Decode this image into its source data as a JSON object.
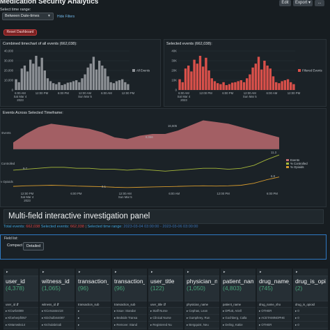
{
  "header": {
    "title": "Medication Security Analytics",
    "edit_label": "Edit",
    "export_label": "Export ▾",
    "more_label": "..."
  },
  "controls": {
    "time_range_label": "Select time range:",
    "time_range_value": "Between Date-times",
    "hide_filters": "Hide Filters",
    "reset_label": "Reset Dashboard"
  },
  "timechart_all": {
    "title": "Combined timechart of all events (662,038):",
    "legend": "All Events",
    "bar_color": "#8d9196",
    "chart_data": {
      "type": "bar",
      "y_ticks": [
        "40,000",
        "30,000",
        "20,000",
        "10,000",
        "0"
      ],
      "ylim": [
        0,
        40000
      ],
      "x_ticks": [
        "6:00 AM\nSat Mar 4\n2023",
        "12:00 PM",
        "6:00 PM",
        "12:00 AM\nSun Mar 5",
        "6:00 AM",
        "12:00 PM"
      ],
      "values": [
        11000,
        8000,
        22000,
        25000,
        19000,
        31000,
        27000,
        35000,
        24000,
        33000,
        20000,
        12000,
        9000,
        7000,
        6000,
        8000,
        5000,
        6000,
        7500,
        8000,
        9000,
        10000,
        8000,
        12000,
        16000,
        23000,
        27000,
        34000,
        21000,
        30000,
        25000,
        22000,
        14000,
        8000,
        7000,
        9000,
        10000,
        11000,
        8000,
        6000
      ]
    }
  },
  "timechart_sel": {
    "title": "Selected events (662,038):",
    "legend": "Filtered Events",
    "bar_color": "#d9504a",
    "chart_data": {
      "type": "bar",
      "y_ticks": [
        "40K",
        "30K",
        "20K",
        "10K",
        "0"
      ],
      "ylim": [
        0,
        40000
      ],
      "x_ticks": [
        "6:00 AM\nSat Mar 4\n2023",
        "12:00 PM",
        "6:00 PM",
        "12:00 AM\nSun Mar 5",
        "6:00 AM",
        "12:00 PM"
      ],
      "values": [
        11000,
        8000,
        22000,
        25000,
        19000,
        31000,
        27000,
        35000,
        24000,
        33000,
        20000,
        12000,
        9000,
        7000,
        6000,
        8000,
        5000,
        6000,
        7500,
        8000,
        9000,
        10000,
        8000,
        12000,
        16000,
        23000,
        27000,
        34000,
        21000,
        30000,
        25000,
        22000,
        14000,
        8000,
        7000,
        9000,
        10000,
        11000,
        8000,
        6000
      ]
    }
  },
  "timeframe": {
    "title": "Events Across Selected Timeframe:",
    "legend": [
      "Events",
      "% Controlled",
      "% Opioids"
    ],
    "colors": {
      "events": "#c56f74",
      "controlled": "#a6b83a",
      "opioids": "#d59a2e"
    },
    "chart_data": {
      "type": "area",
      "events_label": "Events",
      "controlled_label": "% Controlled",
      "opioids_label": "% Opioids",
      "events_annotation": "9,066",
      "events_peak": "16,605",
      "controlled_start": "9.7",
      "controlled_end": "11.3",
      "opioids_low": "3.1",
      "opioids_end": "6.8",
      "x_ticks": [
        "12:00 PM\nSat Mar 4\n2023",
        "6:00 PM",
        "12:00 AM\nSun Mar 5",
        "6:00 AM",
        "12:00 PM",
        "6:00 PM"
      ],
      "events": [
        4,
        9,
        13,
        15,
        14,
        13,
        12,
        10,
        7,
        6,
        8,
        9,
        9,
        11,
        14,
        17,
        16,
        15,
        13,
        11,
        9,
        7
      ],
      "controlled": [
        9.7,
        9.8,
        9.9,
        10.0,
        10.0,
        9.9,
        9.9,
        9.8,
        9.8,
        9.7,
        9.8,
        9.7,
        9.6,
        9.7,
        9.8,
        9.9,
        9.9,
        9.8,
        9.9,
        10.2,
        10.8,
        11.3
      ],
      "opioids": [
        3.5,
        3.7,
        3.8,
        3.9,
        3.8,
        3.6,
        3.5,
        3.4,
        3.2,
        3.1,
        3.2,
        3.3,
        3.4,
        3.5,
        3.6,
        3.7,
        3.6,
        3.7,
        3.9,
        4.6,
        5.8,
        6.8
      ]
    }
  },
  "panel": {
    "title": "Multi-field interactive investigation panel",
    "total_label": "Total events:",
    "total_value": "662,038",
    "selected_label": "Selected events:",
    "selected_value": "662,038",
    "range_label": "Selected time range:",
    "range_value": "2023-03-04 03:00:00 - 2023-03-06 03:00:00"
  },
  "field_list": {
    "label": "Field list:",
    "compact": "Compact",
    "detailed": "Detailed"
  },
  "columns": [
    {
      "name": "user_id",
      "count": "(4,378)",
      "sub": "user_id ⇵",
      "rows": [
        "KCwrb4089",
        "Kfoeherpfi057",
        "KMarnwks14",
        "OSwifterz01"
      ]
    },
    {
      "name": "witness_id",
      "count": "(1,065)",
      "sub": "witness_id ⇵",
      "rows": [
        "KCervantez18",
        "KDchulbm4087",
        "KIchulabriodi",
        "KUkucxdo483"
      ]
    },
    {
      "name": "transaction_",
      "count": "(96)",
      "sub": "transaction_sub",
      "rows": [
        "",
        "",
        "",
        ""
      ]
    },
    {
      "name": "transaction_",
      "count": "(96)",
      "sub": "transaction_sub",
      "rows": [
        "Issue: Standar",
        "Bedside Transa",
        "Remove: Stand",
        ""
      ]
    },
    {
      "name": "user_title",
      "count": "(122)",
      "sub": "user_title ⇵",
      "rows": [
        "Staff Nurse",
        "Clinical Nurse",
        "Registered Nu",
        "Staff Nurse"
      ]
    },
    {
      "name": "physician_n",
      "count": "(1,050)",
      "sub": "physician_name",
      "rows": [
        "Cephas, Lean",
        "Gumphrey, Run",
        "Bergquist, Neu",
        "Rhewanee Juda"
      ]
    },
    {
      "name": "patient_nam",
      "count": "(4,803)",
      "sub": "patient_name",
      "rows": [
        "DPlutt, Ariell",
        "Gochberg, Calla",
        "Deling, Kakie",
        "Cervantes Luis"
      ]
    },
    {
      "name": "drug_name_",
      "count": "(745)",
      "sub": "drug_name_sho",
      "rows": [
        "OTHER",
        "ACETAMINOPHE",
        "OTHER",
        "ACETAMINOPHE"
      ]
    },
    {
      "name": "drug_is_opio",
      "count": "(2)",
      "sub": "drug_is_opioid",
      "rows": [
        "0",
        "0",
        "0",
        "0"
      ]
    }
  ]
}
